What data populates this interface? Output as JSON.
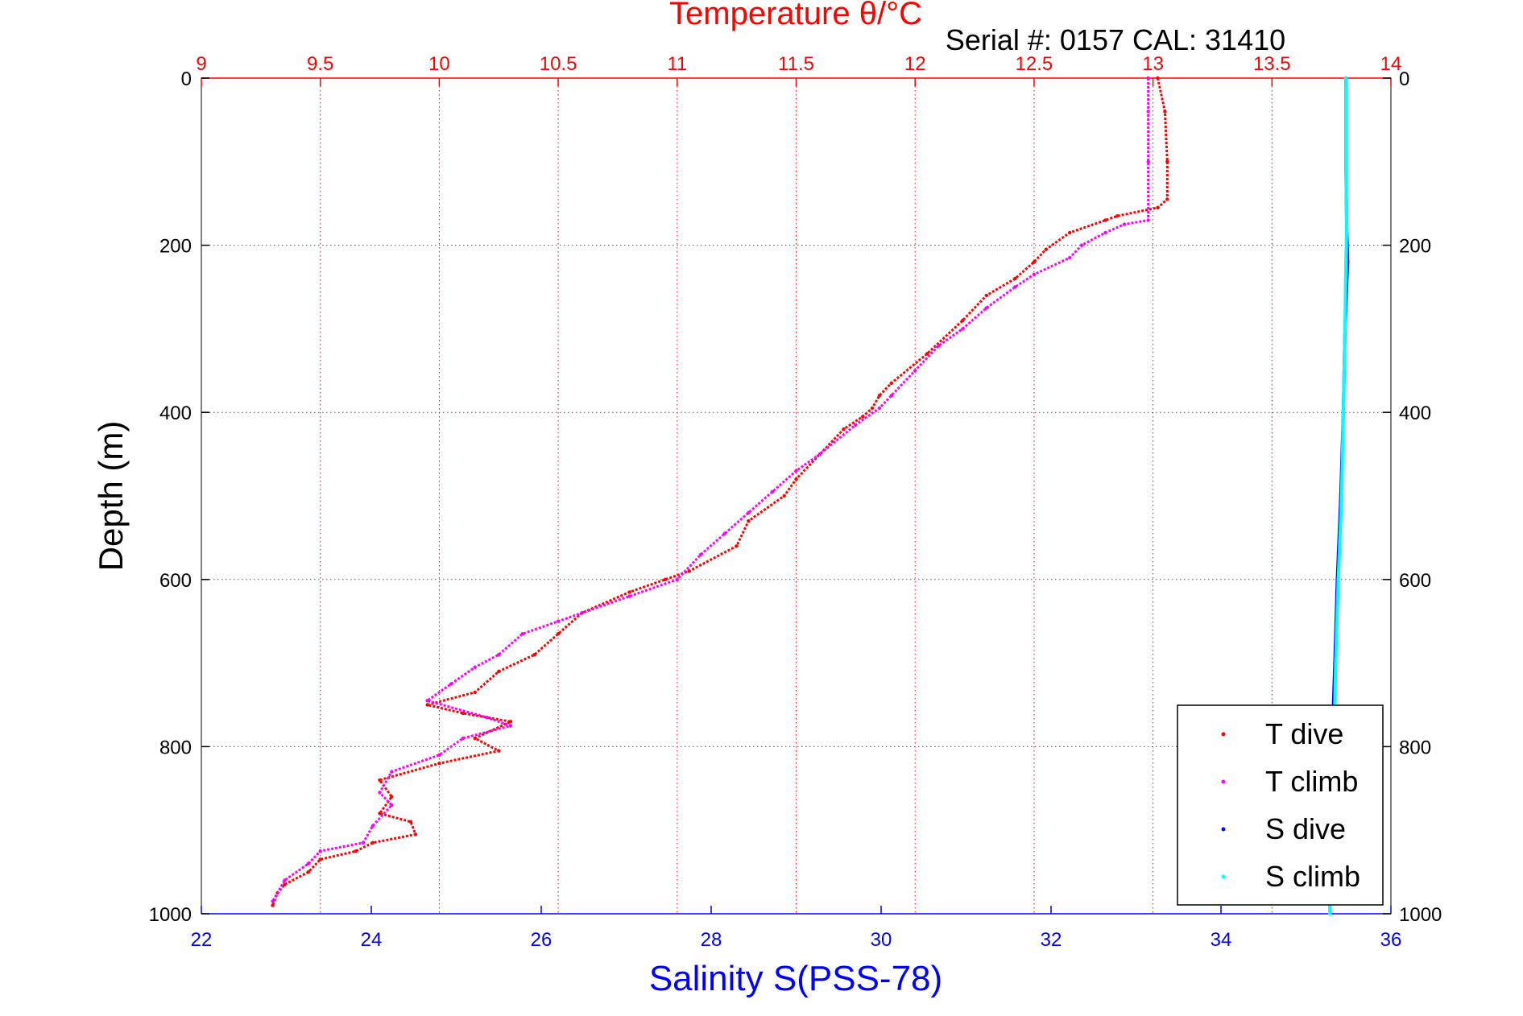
{
  "title": "Temperature θ/°C",
  "subtitle": "Serial #: 0157  CAL: 31410",
  "colors": {
    "temperature_axis": "#ff0000",
    "salinity_axis": "#0000ff",
    "t_dive": "#ff0000",
    "t_climb": "#ff00ff",
    "s_dive": "#0000ff",
    "s_climb": "#00ffff"
  },
  "chart_data": {
    "type": "scatter",
    "title": "Temperature θ/°C",
    "subtitle": "Serial #: 0157  CAL: 31410",
    "ylabel": "Depth (m)",
    "xlabel": "Salinity S(PSS-78)",
    "x_top_label": "Temperature θ/°C",
    "y_reversed": true,
    "ylim": [
      0,
      1000
    ],
    "yticks": [
      "0",
      "200",
      "400",
      "600",
      "800",
      "1000"
    ],
    "xlim_top": [
      9,
      14
    ],
    "xticks_top": [
      "9",
      "9.5",
      "10",
      "10.5",
      "11",
      "11.5",
      "12",
      "12.5",
      "13",
      "13.5",
      "14"
    ],
    "xlim_bottom": [
      22,
      36
    ],
    "xticks_bottom": [
      "22",
      "24",
      "26",
      "28",
      "30",
      "32",
      "34",
      "36"
    ],
    "grid": true,
    "legend_position": "bottom-right",
    "legend": [
      "T dive",
      "T climb",
      "S dive",
      "S climb"
    ],
    "series": [
      {
        "name": "T dive",
        "axis": "top",
        "points": [
          [
            13.02,
            0
          ],
          [
            13.05,
            40
          ],
          [
            13.06,
            100
          ],
          [
            13.06,
            145
          ],
          [
            13.02,
            155
          ],
          [
            12.85,
            165
          ],
          [
            12.8,
            170
          ],
          [
            12.65,
            185
          ],
          [
            12.55,
            205
          ],
          [
            12.5,
            220
          ],
          [
            12.42,
            240
          ],
          [
            12.3,
            260
          ],
          [
            12.2,
            290
          ],
          [
            12.05,
            330
          ],
          [
            11.9,
            365
          ],
          [
            11.85,
            380
          ],
          [
            11.82,
            395
          ],
          [
            11.78,
            405
          ],
          [
            11.7,
            420
          ],
          [
            11.6,
            450
          ],
          [
            11.5,
            480
          ],
          [
            11.45,
            500
          ],
          [
            11.3,
            530
          ],
          [
            11.25,
            560
          ],
          [
            11.05,
            590
          ],
          [
            10.95,
            600
          ],
          [
            10.8,
            615
          ],
          [
            10.6,
            640
          ],
          [
            10.5,
            665
          ],
          [
            10.4,
            690
          ],
          [
            10.25,
            710
          ],
          [
            10.15,
            735
          ],
          [
            9.95,
            750
          ],
          [
            10.1,
            760
          ],
          [
            10.3,
            770
          ],
          [
            10.15,
            790
          ],
          [
            10.25,
            805
          ],
          [
            10.0,
            820
          ],
          [
            9.75,
            840
          ],
          [
            9.8,
            860
          ],
          [
            9.75,
            880
          ],
          [
            9.88,
            890
          ],
          [
            9.9,
            905
          ],
          [
            9.72,
            915
          ],
          [
            9.65,
            925
          ],
          [
            9.5,
            935
          ],
          [
            9.45,
            950
          ],
          [
            9.35,
            965
          ],
          [
            9.32,
            975
          ],
          [
            9.3,
            990
          ]
        ]
      },
      {
        "name": "T climb",
        "axis": "top",
        "points": [
          [
            12.98,
            0
          ],
          [
            12.98,
            40
          ],
          [
            12.98,
            100
          ],
          [
            12.98,
            170
          ],
          [
            12.88,
            175
          ],
          [
            12.8,
            185
          ],
          [
            12.7,
            200
          ],
          [
            12.65,
            215
          ],
          [
            12.5,
            235
          ],
          [
            12.42,
            250
          ],
          [
            12.3,
            275
          ],
          [
            12.2,
            300
          ],
          [
            12.1,
            320
          ],
          [
            12.0,
            350
          ],
          [
            11.9,
            380
          ],
          [
            11.85,
            395
          ],
          [
            11.75,
            415
          ],
          [
            11.6,
            450
          ],
          [
            11.5,
            470
          ],
          [
            11.4,
            495
          ],
          [
            11.3,
            520
          ],
          [
            11.2,
            545
          ],
          [
            11.1,
            570
          ],
          [
            11.0,
            600
          ],
          [
            10.8,
            620
          ],
          [
            10.5,
            650
          ],
          [
            10.35,
            665
          ],
          [
            10.25,
            690
          ],
          [
            10.15,
            705
          ],
          [
            10.05,
            725
          ],
          [
            9.95,
            745
          ],
          [
            10.2,
            765
          ],
          [
            10.3,
            775
          ],
          [
            10.1,
            790
          ],
          [
            10.0,
            810
          ],
          [
            9.8,
            830
          ],
          [
            9.75,
            855
          ],
          [
            9.8,
            870
          ],
          [
            9.72,
            895
          ],
          [
            9.68,
            915
          ],
          [
            9.5,
            925
          ],
          [
            9.45,
            940
          ],
          [
            9.35,
            960
          ],
          [
            9.3,
            985
          ]
        ]
      },
      {
        "name": "S dive",
        "axis": "bottom",
        "points": [
          [
            35.47,
            0
          ],
          [
            35.47,
            100
          ],
          [
            35.48,
            180
          ],
          [
            35.49,
            220
          ],
          [
            35.46,
            300
          ],
          [
            35.44,
            400
          ],
          [
            35.41,
            500
          ],
          [
            35.37,
            600
          ],
          [
            35.34,
            700
          ],
          [
            35.32,
            760
          ]
        ]
      },
      {
        "name": "S climb",
        "axis": "bottom",
        "points": [
          [
            35.47,
            0
          ],
          [
            35.47,
            100
          ],
          [
            35.48,
            180
          ],
          [
            35.47,
            220
          ],
          [
            35.46,
            300
          ],
          [
            35.44,
            400
          ],
          [
            35.42,
            500
          ],
          [
            35.38,
            600
          ],
          [
            35.35,
            700
          ],
          [
            35.33,
            800
          ],
          [
            35.3,
            900
          ],
          [
            35.28,
            1000
          ]
        ]
      }
    ]
  }
}
